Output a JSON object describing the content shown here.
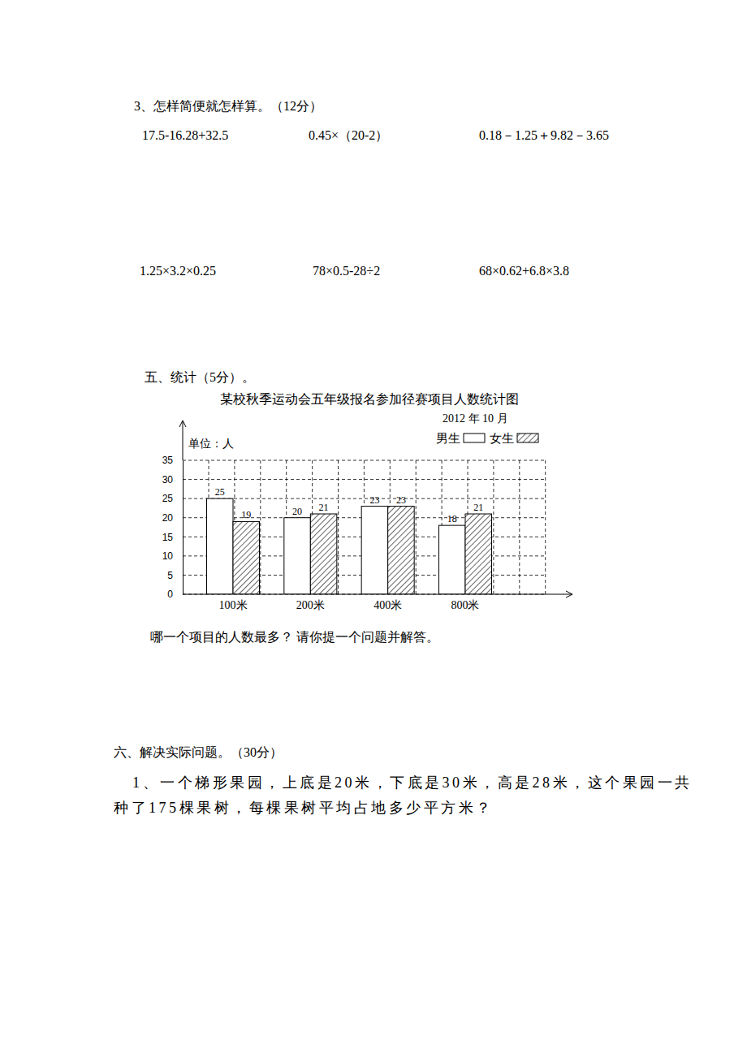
{
  "calc": {
    "heading": "3、怎样简便就怎样算。（12分）",
    "expressions": [
      "17.5-16.28+32.5",
      "0.45×（20-2）",
      "0.18－1.25＋9.82－3.65",
      "1.25×3.2×0.25",
      "78×0.5-28÷2",
      "68×0.62+6.8×3.8"
    ]
  },
  "stats": {
    "heading": "五、统计（5分）。",
    "question": "哪一个项目的人数最多？ 请你提一个问题并解答。"
  },
  "chart_data": {
    "type": "bar",
    "title": "某校秋季运动会五年级报名参加径赛项目人数统计图",
    "subtitle": "2012 年 10 月",
    "y_label": "单位：人",
    "categories": [
      "100米",
      "200米",
      "400米",
      "800米"
    ],
    "series": [
      {
        "name": "男生",
        "color": "#ffffff",
        "values": [
          25,
          20,
          23,
          18
        ]
      },
      {
        "name": "女生",
        "color": "#000000",
        "values": [
          19,
          21,
          23,
          21
        ]
      }
    ],
    "ylim": [
      0,
      35
    ],
    "yticks": [
      0,
      5,
      10,
      15,
      20,
      25,
      30,
      35
    ],
    "grid": true,
    "data_labels": true,
    "legend": "top-right"
  },
  "problems": {
    "heading": "六、解决实际问题。（30分）",
    "lines": [
      "1、一个梯形果园，上底是20米，下底是30米，高是28米，这个果园一共",
      "种了175棵果树，每棵果树平均占地多少平方米？"
    ]
  }
}
